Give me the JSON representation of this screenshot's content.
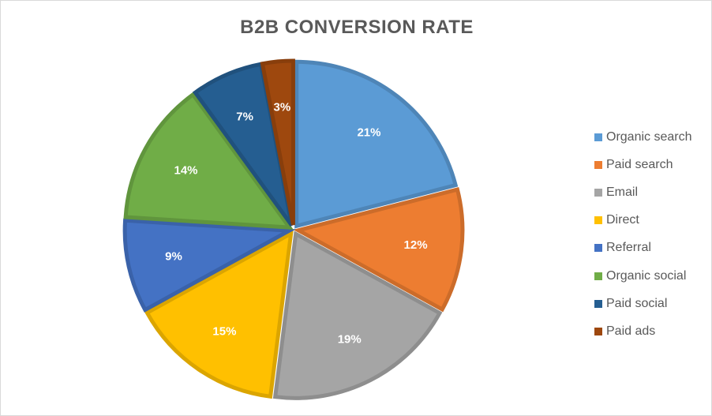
{
  "chart_data": {
    "type": "pie",
    "title": "B2B CONVERSION RATE",
    "legend_position": "right",
    "categories": [
      "Organic search",
      "Paid search",
      "Email",
      "Direct",
      "Referral",
      "Organic social",
      "Paid social",
      "Paid ads"
    ],
    "values": [
      21,
      12,
      19,
      15,
      9,
      14,
      7,
      3
    ],
    "labels": [
      "21%",
      "12%",
      "19%",
      "15%",
      "9%",
      "14%",
      "7%",
      "3%"
    ],
    "exploded": true,
    "colors": [
      "#5b9bd5",
      "#ed7d31",
      "#a5a5a5",
      "#ffc000",
      "#4472c4",
      "#70ad47",
      "#255e91",
      "#9e480e"
    ]
  }
}
